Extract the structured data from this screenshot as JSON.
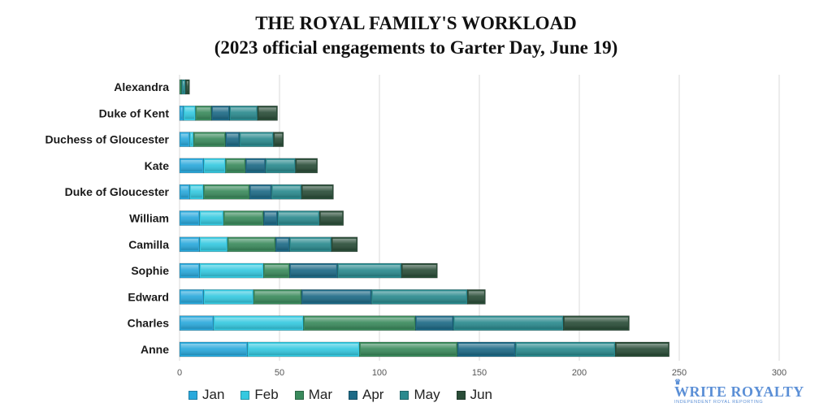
{
  "title_line1": "THE ROYAL FAMILY'S WORKLOAD",
  "title_line2": "(2023 official engagements to Garter Day, June 19)",
  "brand": {
    "name": "WRITE ROYALTY",
    "tagline": "INDEPENDENT ROYAL REPORTING",
    "color": "#5b8fd6"
  },
  "colors": {
    "Jan": "#2aa9dc",
    "Feb": "#35c9e0",
    "Mar": "#3a8a5c",
    "Apr": "#1d6a86",
    "May": "#2a8a8e",
    "Jun": "#2a4d38"
  },
  "chart_data": {
    "type": "bar",
    "orientation": "horizontal",
    "stacked": true,
    "title": "THE ROYAL FAMILY'S WORKLOAD (2023 official engagements to Garter Day, June 19)",
    "categories": [
      "Alexandra",
      "Duke of Kent",
      "Duchess of Gloucester",
      "Kate",
      "Duke of Gloucester",
      "William",
      "Camilla",
      "Sophie",
      "Edward",
      "Charles",
      "Anne"
    ],
    "series": [
      {
        "name": "Jan",
        "values": [
          0,
          2,
          5,
          12,
          5,
          10,
          10,
          10,
          12,
          17,
          34
        ]
      },
      {
        "name": "Feb",
        "values": [
          0,
          6,
          2,
          11,
          7,
          12,
          14,
          32,
          25,
          45,
          56
        ]
      },
      {
        "name": "Mar",
        "values": [
          1,
          8,
          16,
          10,
          23,
          20,
          24,
          13,
          24,
          56,
          49
        ]
      },
      {
        "name": "Apr",
        "values": [
          0,
          9,
          7,
          10,
          11,
          7,
          7,
          24,
          35,
          19,
          29
        ]
      },
      {
        "name": "May",
        "values": [
          2,
          14,
          17,
          15,
          15,
          21,
          21,
          32,
          48,
          55,
          50
        ]
      },
      {
        "name": "Jun",
        "values": [
          2,
          10,
          5,
          11,
          16,
          12,
          13,
          18,
          9,
          33,
          27
        ]
      }
    ],
    "xlim": [
      0,
      300
    ],
    "xticks": [
      0,
      50,
      100,
      150,
      200,
      250,
      300
    ],
    "grid": "vertical",
    "legend": "bottom-left"
  }
}
